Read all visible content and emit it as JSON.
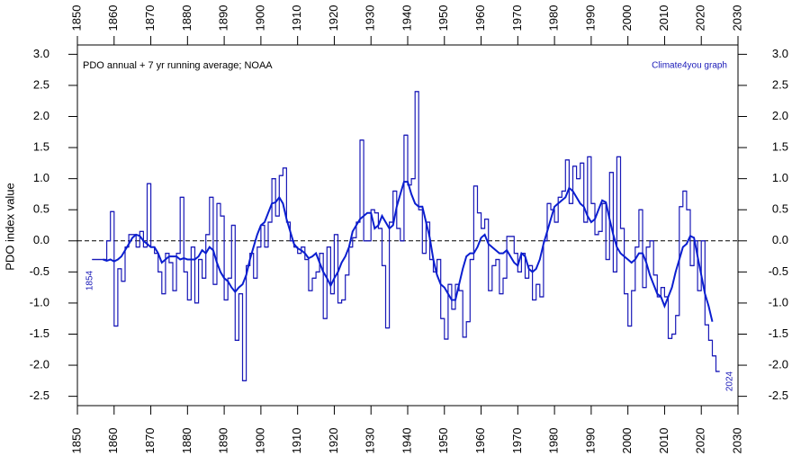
{
  "chart_data": {
    "type": "line",
    "title": "PDO annual + 7 yr running average; NOAA",
    "subtitle": "Climate4you graph",
    "ylabel": "PDO index value",
    "annotations": [
      "1854",
      "2024"
    ],
    "x": [
      1854,
      1855,
      1856,
      1857,
      1858,
      1859,
      1860,
      1861,
      1862,
      1863,
      1864,
      1865,
      1866,
      1867,
      1868,
      1869,
      1870,
      1871,
      1872,
      1873,
      1874,
      1875,
      1876,
      1877,
      1878,
      1879,
      1880,
      1881,
      1882,
      1883,
      1884,
      1885,
      1886,
      1887,
      1888,
      1889,
      1890,
      1891,
      1892,
      1893,
      1894,
      1895,
      1896,
      1897,
      1898,
      1899,
      1900,
      1901,
      1902,
      1903,
      1904,
      1905,
      1906,
      1907,
      1908,
      1909,
      1910,
      1911,
      1912,
      1913,
      1914,
      1915,
      1916,
      1917,
      1918,
      1919,
      1920,
      1921,
      1922,
      1923,
      1924,
      1925,
      1926,
      1927,
      1928,
      1929,
      1930,
      1931,
      1932,
      1933,
      1934,
      1935,
      1936,
      1937,
      1938,
      1939,
      1940,
      1941,
      1942,
      1943,
      1944,
      1945,
      1946,
      1947,
      1948,
      1949,
      1950,
      1951,
      1952,
      1953,
      1954,
      1955,
      1956,
      1957,
      1958,
      1959,
      1960,
      1961,
      1962,
      1963,
      1964,
      1965,
      1966,
      1967,
      1968,
      1969,
      1970,
      1971,
      1972,
      1973,
      1974,
      1975,
      1976,
      1977,
      1978,
      1979,
      1980,
      1981,
      1982,
      1983,
      1984,
      1985,
      1986,
      1987,
      1988,
      1989,
      1990,
      1991,
      1992,
      1993,
      1994,
      1995,
      1996,
      1997,
      1998,
      1999,
      2000,
      2001,
      2002,
      2003,
      2004,
      2005,
      2006,
      2007,
      2008,
      2009,
      2010,
      2011,
      2012,
      2013,
      2014,
      2015,
      2016,
      2017,
      2018,
      2019,
      2020,
      2021,
      2022,
      2023,
      2024
    ],
    "series": [
      {
        "name": "PDO annual",
        "style": "step",
        "color": "#1a1ab8",
        "values": [
          -0.3,
          -0.3,
          -0.3,
          -0.3,
          0.0,
          0.47,
          -1.37,
          -0.45,
          -0.65,
          -0.1,
          0.1,
          0.1,
          -0.1,
          0.15,
          -0.1,
          0.92,
          -0.1,
          -0.2,
          -0.5,
          -0.85,
          -0.2,
          -0.35,
          -0.8,
          -0.2,
          0.7,
          -0.5,
          -0.95,
          -0.1,
          -1.0,
          -0.3,
          -0.6,
          0.1,
          0.7,
          -0.7,
          0.6,
          0.4,
          -0.95,
          -0.6,
          0.25,
          -1.6,
          -0.85,
          -2.25,
          -0.4,
          -0.2,
          -0.6,
          -0.1,
          0.25,
          -0.1,
          0.3,
          1.0,
          0.4,
          1.05,
          1.17,
          0.3,
          0.0,
          -0.1,
          -0.2,
          -0.1,
          -0.3,
          -0.8,
          -0.6,
          -0.5,
          -0.2,
          -1.25,
          -0.1,
          -0.85,
          0.1,
          -1.0,
          -0.95,
          -0.55,
          -0.1,
          0.05,
          0.3,
          1.62,
          0.0,
          0.0,
          0.5,
          0.45,
          0.2,
          -0.4,
          -1.4,
          0.3,
          0.8,
          0.2,
          0.0,
          1.7,
          0.9,
          1.0,
          2.4,
          0.5,
          -0.2,
          0.3,
          -0.3,
          -0.5,
          -0.3,
          -1.25,
          -1.58,
          -0.7,
          -1.1,
          -0.7,
          -0.8,
          -1.55,
          -1.3,
          -0.3,
          0.88,
          0.45,
          0.2,
          0.35,
          -0.8,
          -0.4,
          -0.3,
          -0.85,
          -0.6,
          0.07,
          0.07,
          -0.2,
          -0.5,
          -0.2,
          -0.6,
          -0.4,
          -0.95,
          -0.7,
          -0.9,
          0.0,
          0.6,
          0.5,
          0.3,
          0.7,
          0.8,
          1.3,
          0.6,
          1.2,
          1.0,
          1.25,
          0.3,
          1.35,
          0.6,
          0.1,
          0.15,
          0.6,
          -0.3,
          1.1,
          -0.5,
          1.35,
          0.2,
          -0.85,
          -1.37,
          -0.8,
          -0.1,
          0.5,
          -0.75,
          -0.1,
          0.0,
          -0.55,
          -0.9,
          -0.75,
          -0.9,
          -1.57,
          -1.5,
          -1.2,
          0.55,
          0.8,
          0.5,
          -0.4,
          0.0,
          -0.8,
          0.0,
          -1.35,
          -1.6,
          -1.85,
          -2.1
        ]
      },
      {
        "name": "7 yr running average",
        "style": "line",
        "color": "#0a1ed0",
        "values": [
          null,
          null,
          null,
          -0.3,
          -0.32,
          -0.3,
          -0.33,
          -0.3,
          -0.25,
          -0.15,
          -0.05,
          0.05,
          0.1,
          0.08,
          0.0,
          -0.05,
          -0.1,
          -0.1,
          -0.2,
          -0.35,
          -0.3,
          -0.25,
          -0.25,
          -0.25,
          -0.3,
          -0.28,
          -0.3,
          -0.3,
          -0.3,
          -0.25,
          -0.15,
          -0.2,
          -0.1,
          -0.15,
          -0.35,
          -0.5,
          -0.6,
          -0.65,
          -0.75,
          -0.82,
          -0.75,
          -0.7,
          -0.55,
          -0.3,
          -0.1,
          0.1,
          0.25,
          0.3,
          0.45,
          0.6,
          0.62,
          0.7,
          0.6,
          0.35,
          0.15,
          -0.05,
          -0.12,
          -0.15,
          -0.2,
          -0.28,
          -0.25,
          -0.2,
          -0.35,
          -0.5,
          -0.6,
          -0.72,
          -0.6,
          -0.5,
          -0.35,
          -0.25,
          -0.1,
          0.15,
          0.25,
          0.35,
          0.4,
          0.45,
          0.45,
          0.2,
          0.25,
          0.4,
          0.3,
          0.2,
          0.25,
          0.55,
          0.75,
          0.95,
          0.95,
          0.75,
          0.6,
          0.55,
          0.55,
          0.3,
          0.05,
          -0.3,
          -0.55,
          -0.7,
          -0.75,
          -0.85,
          -0.95,
          -0.95,
          -0.7,
          -0.45,
          -0.25,
          -0.2,
          -0.2,
          -0.1,
          0.05,
          0.1,
          -0.05,
          -0.1,
          -0.15,
          -0.2,
          -0.2,
          -0.15,
          -0.25,
          -0.35,
          -0.4,
          -0.2,
          -0.25,
          -0.45,
          -0.5,
          -0.45,
          -0.3,
          -0.05,
          0.15,
          0.35,
          0.55,
          0.6,
          0.65,
          0.7,
          0.85,
          0.8,
          0.7,
          0.6,
          0.55,
          0.4,
          0.3,
          0.35,
          0.5,
          0.65,
          0.62,
          0.35,
          0.1,
          -0.1,
          -0.2,
          -0.25,
          -0.3,
          -0.35,
          -0.3,
          -0.2,
          -0.2,
          -0.35,
          -0.55,
          -0.7,
          -0.85,
          -0.9,
          -1.05,
          -0.9,
          -0.75,
          -0.5,
          -0.3,
          -0.1,
          -0.05,
          0.08,
          0.05,
          -0.25,
          -0.55,
          -0.85,
          -1.05,
          -1.3,
          null
        ]
      }
    ],
    "xlim": [
      1850,
      2030
    ],
    "xticks": [
      1850,
      1860,
      1870,
      1880,
      1890,
      1900,
      1910,
      1920,
      1930,
      1940,
      1950,
      1960,
      1970,
      1980,
      1990,
      2000,
      2010,
      2020,
      2030
    ],
    "ylim": [
      -2.65,
      3.15
    ],
    "yticks": [
      {
        "value": -2.5,
        "label": "-2.5"
      },
      {
        "value": -2,
        "label": "-2.0"
      },
      {
        "value": -1.5,
        "label": "-1.5"
      },
      {
        "value": -1,
        "label": "-1.0"
      },
      {
        "value": -0.5,
        "label": "-0.5"
      },
      {
        "value": 0,
        "label": "0.0"
      },
      {
        "value": 0.5,
        "label": "0.5"
      },
      {
        "value": 1,
        "label": "1.0"
      },
      {
        "value": 1.5,
        "label": "1.5"
      },
      {
        "value": 2,
        "label": "2.0"
      },
      {
        "value": 2.5,
        "label": "2.5"
      },
      {
        "value": 3,
        "label": "3.0"
      }
    ],
    "y2lim": [
      -2.65,
      3.15
    ],
    "y2ticks": [
      {
        "value": -2.5,
        "label": "-2.5"
      },
      {
        "value": -2,
        "label": "-2.0"
      },
      {
        "value": -1.5,
        "label": "-1.5"
      },
      {
        "value": -1,
        "label": "-1.0"
      },
      {
        "value": -0.5,
        "label": "-0.5"
      },
      {
        "value": 0,
        "label": "0.0"
      },
      {
        "value": 0.5,
        "label": "0.5"
      },
      {
        "value": 1,
        "label": "1.0"
      },
      {
        "value": 1.5,
        "label": "1.5"
      },
      {
        "value": 2,
        "label": "2.0"
      },
      {
        "value": 2.5,
        "label": "2.5"
      },
      {
        "value": 3,
        "label": "3.0"
      }
    ],
    "zero_line": true
  }
}
